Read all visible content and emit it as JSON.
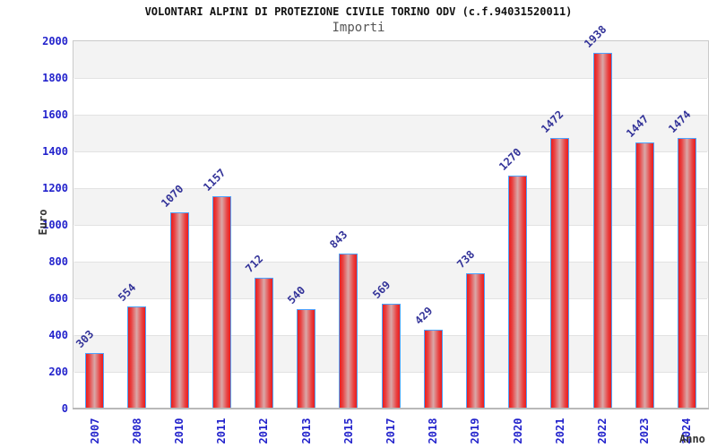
{
  "header": {
    "title": "VOLONTARI ALPINI DI PROTEZIONE CIVILE TORINO ODV (c.f.94031520011)",
    "subtitle": "Importi"
  },
  "chart_data": {
    "type": "bar",
    "title": "VOLONTARI ALPINI DI PROTEZIONE CIVILE TORINO ODV (c.f.94031520011)",
    "subtitle": "Importi",
    "xlabel": "Anno",
    "ylabel": "Euro",
    "categories": [
      "2007",
      "2008",
      "2010",
      "2011",
      "2012",
      "2013",
      "2015",
      "2017",
      "2018",
      "2019",
      "2020",
      "2021",
      "2022",
      "2023",
      "2024"
    ],
    "values": [
      303,
      554,
      1070,
      1157,
      712,
      540,
      843,
      569,
      429,
      738,
      1270,
      1472,
      1938,
      1447,
      1474
    ],
    "ylim": [
      0,
      2000
    ],
    "ytick_step": 200,
    "yticks": [
      0,
      200,
      400,
      600,
      800,
      1000,
      1200,
      1400,
      1600,
      1800,
      2000
    ],
    "legend": "none",
    "grid": "alternating horizontal bands every 200 units",
    "colors": {
      "bar_edge": "#ea1d1d",
      "bar_center": "#d9a8a8",
      "bar_border": "#4da3ff",
      "tick_label_blue": "#2323cc",
      "value_label_navy": "#333399",
      "band_gray": "#f3f3f3",
      "axis_title_dark": "#333333",
      "title_black": "#111111",
      "subtitle_gray": "#555555"
    }
  }
}
